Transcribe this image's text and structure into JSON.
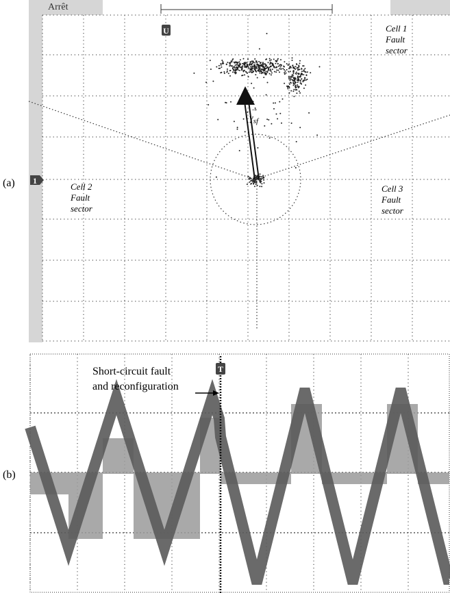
{
  "panel_a": {
    "label": "(a)",
    "top_label": "Arrêt",
    "marker_top": "U",
    "marker_left": "1",
    "cells": [
      {
        "name": "Cell 1",
        "line2": "Fault",
        "line3": "sector"
      },
      {
        "name": "Cell 2",
        "line2": "Fault",
        "line3": "sector"
      },
      {
        "name": "Cell 3",
        "line2": "Fault",
        "line3": "sector"
      }
    ],
    "vector_label": {
      "symbol": "v",
      "subscript": "sf"
    }
  },
  "panel_b": {
    "label": "(b)",
    "marker_top": "T",
    "annotation": [
      "Short-circuit fault",
      "and reconfiguration"
    ]
  }
}
